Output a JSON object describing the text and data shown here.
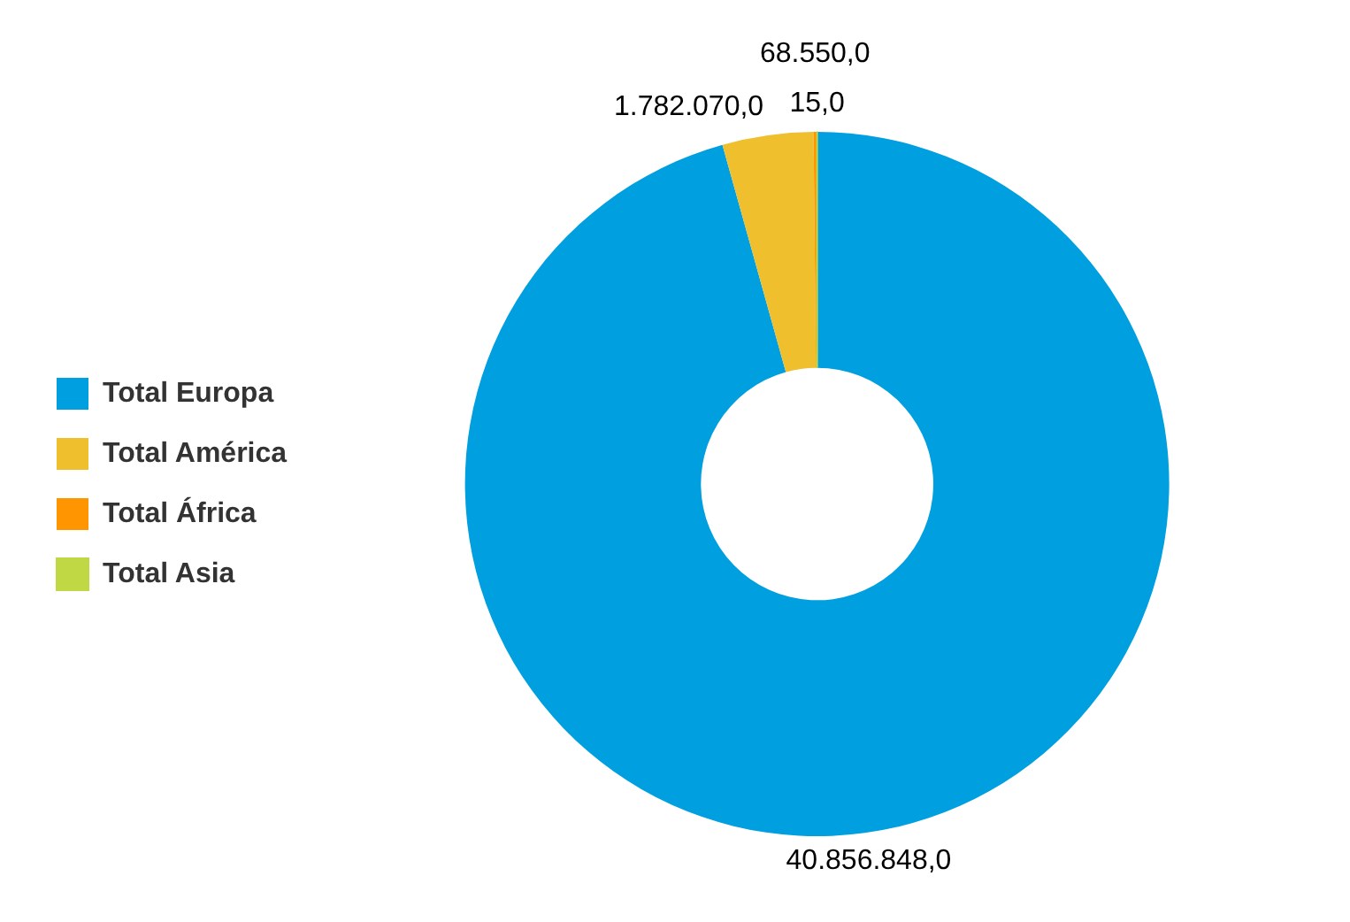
{
  "chart_data": {
    "type": "donut",
    "categories": [
      "Total Europa",
      "Total América",
      "Total África",
      "Total Asia"
    ],
    "values": [
      40856848,
      1782070,
      68550,
      15
    ],
    "colors": [
      "#009fdf",
      "#f0bf2e",
      "#ff9500",
      "#bfd843"
    ],
    "value_labels": [
      "40.856.848,0",
      "1.782.070,0",
      "68.550,0",
      "15,0"
    ],
    "legend": "left"
  }
}
